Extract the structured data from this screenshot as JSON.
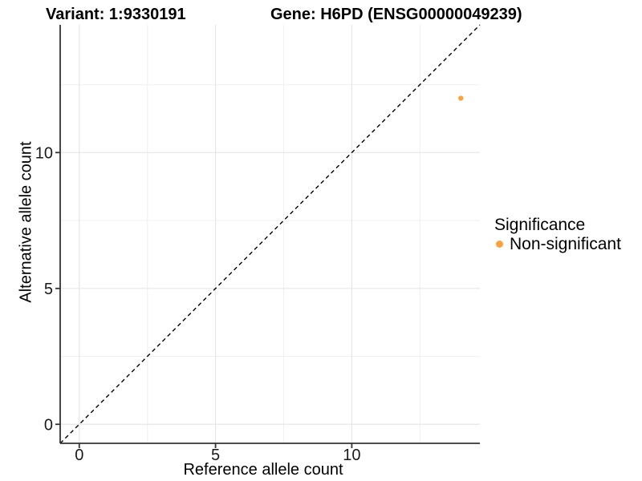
{
  "chart_data": {
    "type": "scatter",
    "title_left": "Variant: 1:9330191",
    "title_right": "Gene: H6PD (ENSG00000049239)",
    "xlabel": "Reference allele count",
    "ylabel": "Alternative allele count",
    "xlim": [
      -0.7,
      14.7
    ],
    "ylim": [
      -0.7,
      14.7
    ],
    "x_ticks": [
      0,
      5,
      10
    ],
    "y_ticks": [
      0,
      5,
      10
    ],
    "x_minor_ticks": [
      2.5,
      7.5,
      12.5
    ],
    "y_minor_ticks": [
      2.5,
      7.5,
      12.5
    ],
    "grid": "major+minor",
    "reference_line": {
      "equation": "y = x",
      "style": "dashed",
      "color": "#000000"
    },
    "series": [
      {
        "name": "Non-significant",
        "color": "#F9A242",
        "points": [
          {
            "x": 14,
            "y": 12
          }
        ]
      }
    ],
    "point_radius": 3.2,
    "legend": {
      "title": "Significance",
      "position": "right",
      "items": [
        {
          "label": "Non-significant",
          "color": "#F9A242",
          "marker": "circle"
        }
      ]
    },
    "colors": {
      "background": "#FFFFFF",
      "axis_line": "#333333",
      "tick_mark": "#333333",
      "tick_label": "#1A1A1A",
      "grid_major": "#E6E6E6",
      "grid_minor": "#F0F0F0",
      "point": "#F9A242",
      "reference_line": "#000000",
      "text": "#000000"
    }
  }
}
